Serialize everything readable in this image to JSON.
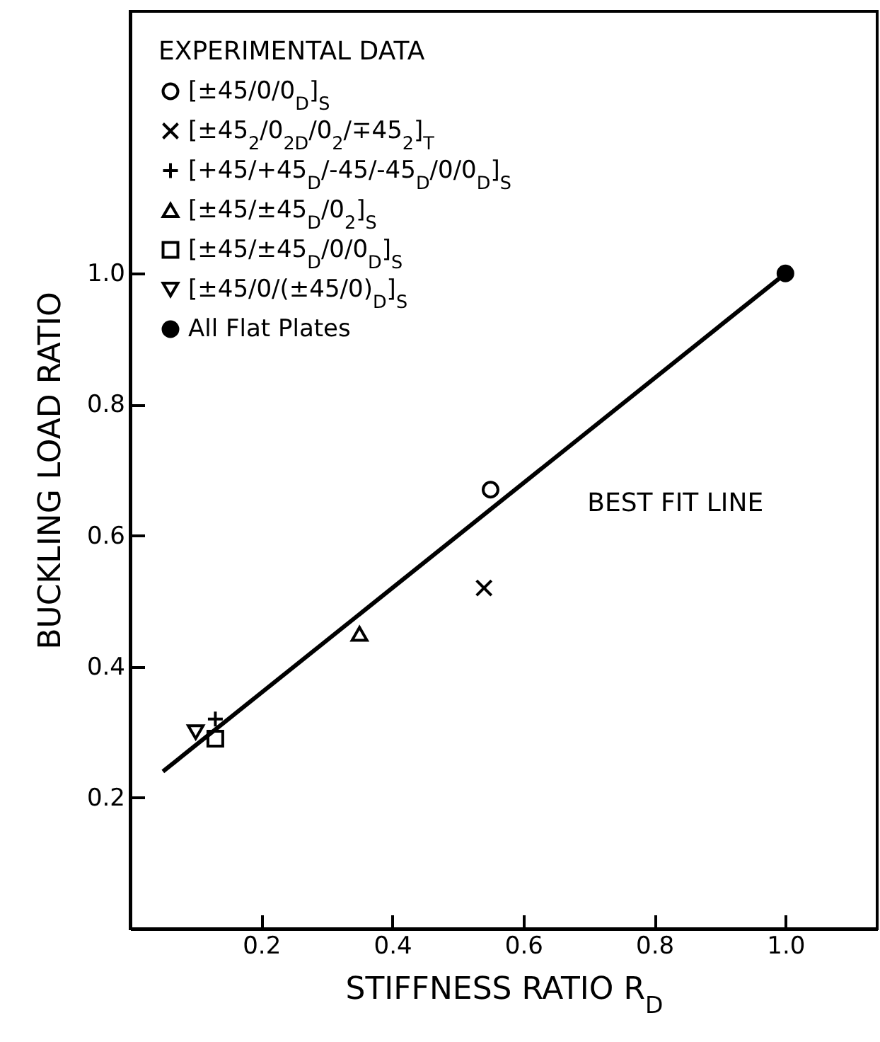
{
  "chart_data": {
    "type": "scatter",
    "xlabel": "STIFFNESS RATIO R$_{D}$",
    "ylabel": "BUCKLING LOAD RATIO",
    "legend_title": "EXPERIMENTAL DATA",
    "legend": "top left",
    "xlim": [
      0,
      1.14
    ],
    "ylim": [
      0,
      1.4
    ],
    "xticks": [
      0.2,
      0.4,
      0.6,
      0.8,
      {
        "value": 1.0,
        "label": "1.0"
      }
    ],
    "yticks": [
      0.2,
      0.4,
      0.6,
      0.8,
      {
        "value": 1.0,
        "label": "1.0"
      }
    ],
    "grid": false,
    "series": [
      {
        "name": "[±45/0/0$_{D}$]$_{S}$",
        "color": "#000000",
        "marker": "circle",
        "x": [
          0.55
        ],
        "values": [
          0.67
        ]
      },
      {
        "name": "[±45$_{2}$/0$_{2D}$/0$_{2}$/∓45$_{2}$]$_{T}$",
        "color": "#000000",
        "marker": "cross",
        "x": [
          0.54
        ],
        "values": [
          0.52
        ]
      },
      {
        "name": "[+45/+45$_{D}$/-45/-45$_{D}$/0/0$_{D}$]$_{S}$",
        "color": "#000000",
        "marker": "plus",
        "x": [
          0.13
        ],
        "values": [
          0.32
        ]
      },
      {
        "name": "[±45/±45$_{D}$/0$_{2}$]$_{S}$",
        "color": "#000000",
        "marker": "triangle",
        "x": [
          0.35
        ],
        "values": [
          0.45
        ]
      },
      {
        "name": "[±45/±45$_{D}$/0/0$_{D}$]$_{S}$",
        "color": "#000000",
        "marker": "square",
        "x": [
          0.13
        ],
        "values": [
          0.29
        ]
      },
      {
        "name": "[±45/0/(±45/0)$_{D}$]$_{S}$",
        "color": "#000000",
        "marker": "triangle-down",
        "x": [
          0.1
        ],
        "values": [
          0.3
        ]
      },
      {
        "name": "All Flat Plates",
        "color": "#000000",
        "marker": "filled-circle",
        "x": [
          1.0
        ],
        "values": [
          1.0
        ]
      },
      {
        "type": "line",
        "color": "#000000",
        "marker": "none",
        "line_style": "solid",
        "x": [
          0.05,
          1.0
        ],
        "values": [
          0.24,
          1.0
        ]
      }
    ],
    "annotations": [
      {
        "text": "BEST FIT LINE",
        "x": 0.62,
        "y": 0.7
      }
    ]
  }
}
